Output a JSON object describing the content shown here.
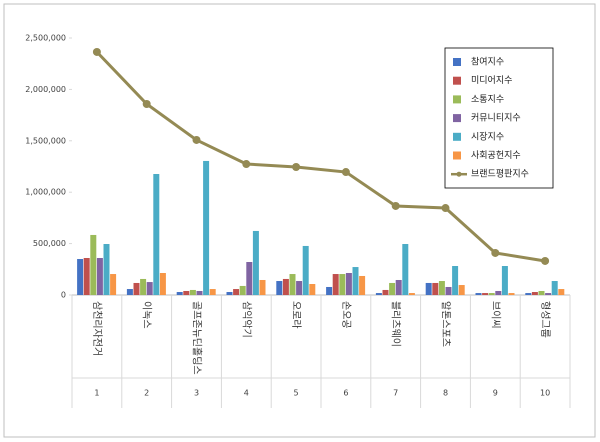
{
  "chart_data": {
    "type": "bar",
    "categories": [
      "삼천리자전거",
      "이녹스",
      "골프존뉴딘홀딩스",
      "삼익악기",
      "오로라",
      "손오공",
      "블리츠웨이",
      "알톤스포츠",
      "브이씨",
      "형성그룹"
    ],
    "ranks": [
      1,
      2,
      3,
      4,
      5,
      6,
      7,
      8,
      9,
      10
    ],
    "series": [
      {
        "name": "참여지수",
        "color": "#4472c4",
        "values": [
          350000,
          58000,
          29000,
          29000,
          136000,
          78000,
          19000,
          117000,
          19000,
          19000
        ]
      },
      {
        "name": "미디어지수",
        "color": "#c0504d",
        "values": [
          360000,
          117000,
          39000,
          58000,
          156000,
          204000,
          49000,
          117000,
          19000,
          29000
        ]
      },
      {
        "name": "소통지수",
        "color": "#9bbb59",
        "values": [
          584000,
          156000,
          49000,
          88000,
          204000,
          204000,
          117000,
          136000,
          19000,
          39000
        ]
      },
      {
        "name": "커뮤니티지수",
        "color": "#8064a2",
        "values": [
          360000,
          126000,
          39000,
          321000,
          136000,
          214000,
          146000,
          78000,
          39000,
          19000
        ]
      },
      {
        "name": "시장지수",
        "color": "#4bacc6",
        "values": [
          496000,
          1177000,
          1304000,
          623000,
          477000,
          272000,
          496000,
          282000,
          282000,
          136000
        ]
      },
      {
        "name": "사회공헌지수",
        "color": "#f79646",
        "values": [
          204000,
          214000,
          58000,
          146000,
          107000,
          185000,
          19000,
          97000,
          19000,
          58000
        ]
      },
      {
        "name": "브랜드평판지수",
        "color": "#948a54",
        "type": "line",
        "values": [
          2364000,
          1858000,
          1508000,
          1274000,
          1245000,
          1196000,
          866000,
          846000,
          409000,
          331000
        ]
      }
    ],
    "ylim": [
      0,
      2500000
    ],
    "yticks": [
      0,
      {
        "value": 500000,
        "label": "500,000"
      },
      {
        "value": 1000000,
        "label": "1,000,000"
      },
      {
        "value": 1500000,
        "label": "1,500,000"
      },
      {
        "value": 2000000,
        "label": "2,000,000"
      },
      {
        "value": 2500000,
        "label": "2,500,000"
      }
    ],
    "grid": false,
    "legend": "right"
  }
}
